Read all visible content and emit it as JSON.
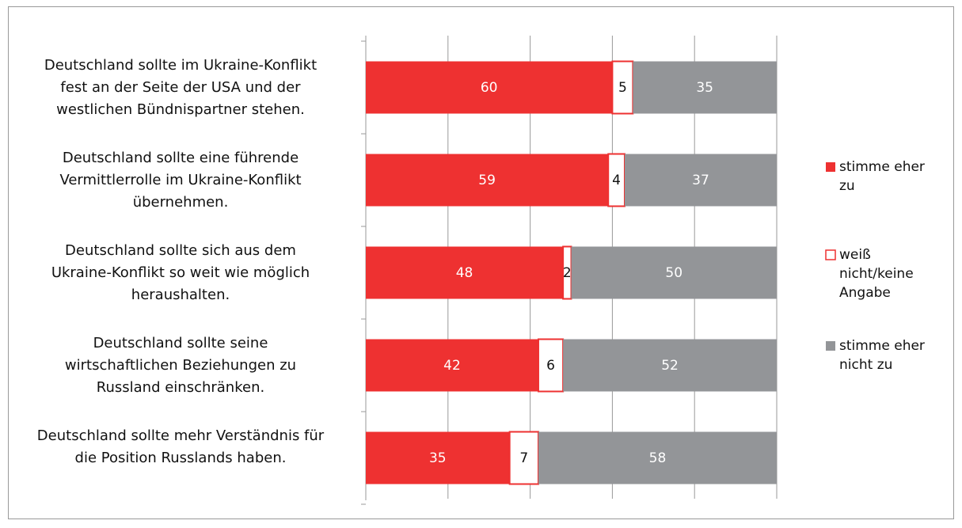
{
  "chart_data": {
    "type": "stacked_barh",
    "categories": [
      "Deutschland sollte im Ukraine-Konflikt\nfest an der Seite der USA und der\nwestlichen Bündnispartner stehen.",
      "Deutschland sollte eine führende\nVermittlerrolle im Ukraine-Konflikt\nübernehmen.",
      "Deutschland sollte sich aus dem\nUkraine-Konflikt so weit wie möglich\nheraushalten.",
      "Deutschland sollte seine\nwirtschaftlichen Beziehungen zu\nRussland einschränken.",
      "Deutschland sollte mehr Verständnis für\ndie Position Russlands haben."
    ],
    "series": [
      {
        "name": "stimme eher zu",
        "color": "#ee3131",
        "values": [
          60,
          59,
          48,
          42,
          35
        ]
      },
      {
        "name": "weiß nicht/keine Angabe",
        "color": "#ffffff",
        "values": [
          5,
          4,
          2,
          6,
          7
        ]
      },
      {
        "name": "stimme eher nicht zu",
        "color": "#939598",
        "values": [
          35,
          37,
          50,
          52,
          58
        ]
      }
    ],
    "xlim": [
      0,
      100
    ],
    "xticks": [
      0,
      20,
      40,
      60,
      80,
      100
    ],
    "grid": true,
    "legend": "right"
  }
}
